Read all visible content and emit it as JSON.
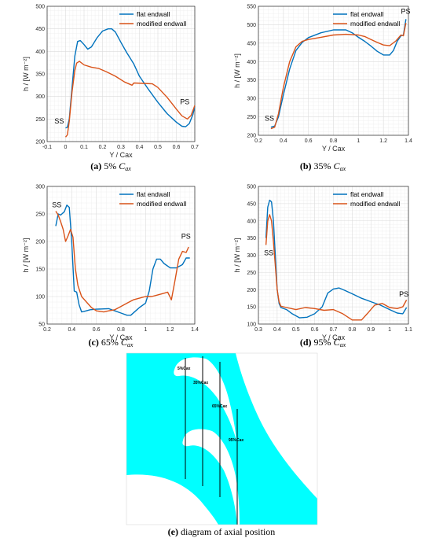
{
  "chart_data": [
    {
      "type": "line",
      "caption": {
        "label": "(a)",
        "text": "5% ",
        "var": "C",
        "sub": "ax"
      },
      "xlabel": "Y / Cax",
      "ylabel": "h / [W m⁻²]",
      "xlim": [
        -0.1,
        0.7
      ],
      "ylim": [
        200,
        500
      ],
      "xticks": [
        -0.1,
        0,
        0.1,
        0.2,
        0.3,
        0.4,
        0.5,
        0.6,
        0.7
      ],
      "yticks": [
        200,
        250,
        300,
        350,
        400,
        450,
        500
      ],
      "grid": true,
      "legend_position": "top-right",
      "annotations": [
        {
          "text": "SS",
          "x": -0.06,
          "y": 240
        },
        {
          "text": "PS",
          "x": 0.62,
          "y": 283
        }
      ],
      "series": [
        {
          "name": "flat endwall",
          "color": "#0072bd",
          "points": [
            [
              0.0,
              230
            ],
            [
              0.01,
              232
            ],
            [
              0.02,
              250
            ],
            [
              0.035,
              320
            ],
            [
              0.05,
              390
            ],
            [
              0.065,
              422
            ],
            [
              0.08,
              424
            ],
            [
              0.1,
              415
            ],
            [
              0.12,
              405
            ],
            [
              0.14,
              410
            ],
            [
              0.17,
              430
            ],
            [
              0.2,
              445
            ],
            [
              0.23,
              450
            ],
            [
              0.25,
              450
            ],
            [
              0.27,
              443
            ],
            [
              0.3,
              420
            ],
            [
              0.33,
              398
            ],
            [
              0.37,
              372
            ],
            [
              0.4,
              345
            ],
            [
              0.45,
              315
            ],
            [
              0.5,
              287
            ],
            [
              0.55,
              262
            ],
            [
              0.6,
              243
            ],
            [
              0.63,
              234
            ],
            [
              0.65,
              233
            ],
            [
              0.67,
              240
            ],
            [
              0.69,
              260
            ],
            [
              0.7,
              278
            ]
          ]
        },
        {
          "name": "modified endwall",
          "color": "#d95319",
          "points": [
            [
              0.0,
              210
            ],
            [
              0.01,
              215
            ],
            [
              0.02,
              245
            ],
            [
              0.035,
              310
            ],
            [
              0.05,
              358
            ],
            [
              0.06,
              374
            ],
            [
              0.075,
              378
            ],
            [
              0.1,
              370
            ],
            [
              0.14,
              365
            ],
            [
              0.18,
              362
            ],
            [
              0.22,
              355
            ],
            [
              0.27,
              345
            ],
            [
              0.32,
              332
            ],
            [
              0.36,
              325
            ],
            [
              0.37,
              330
            ],
            [
              0.42,
              329
            ],
            [
              0.47,
              328
            ],
            [
              0.5,
              320
            ],
            [
              0.55,
              298
            ],
            [
              0.6,
              272
            ],
            [
              0.63,
              257
            ],
            [
              0.66,
              250
            ],
            [
              0.68,
              258
            ],
            [
              0.7,
              280
            ]
          ]
        }
      ]
    },
    {
      "type": "line",
      "caption": {
        "label": "(b)",
        "text": "35% ",
        "var": "C",
        "sub": "ax"
      },
      "xlabel": "Y / Cax",
      "ylabel": "h / [W m⁻²]",
      "xlim": [
        0.2,
        1.4
      ],
      "ylim": [
        200,
        550
      ],
      "xticks": [
        0.2,
        0.4,
        0.6,
        0.8,
        1,
        1.2,
        1.4
      ],
      "yticks": [
        200,
        250,
        300,
        350,
        400,
        450,
        500,
        550
      ],
      "grid": true,
      "legend_position": "top-right",
      "annotations": [
        {
          "text": "SS",
          "x": 0.25,
          "y": 240
        },
        {
          "text": "PS",
          "x": 1.34,
          "y": 530
        }
      ],
      "series": [
        {
          "name": "flat endwall",
          "color": "#0072bd",
          "points": [
            [
              0.3,
              222
            ],
            [
              0.33,
              225
            ],
            [
              0.36,
              250
            ],
            [
              0.4,
              310
            ],
            [
              0.45,
              380
            ],
            [
              0.5,
              430
            ],
            [
              0.55,
              452
            ],
            [
              0.6,
              465
            ],
            [
              0.7,
              478
            ],
            [
              0.8,
              486
            ],
            [
              0.9,
              486
            ],
            [
              0.95,
              478
            ],
            [
              1.0,
              466
            ],
            [
              1.05,
              455
            ],
            [
              1.1,
              442
            ],
            [
              1.15,
              428
            ],
            [
              1.2,
              418
            ],
            [
              1.25,
              418
            ],
            [
              1.28,
              430
            ],
            [
              1.31,
              455
            ],
            [
              1.34,
              470
            ],
            [
              1.36,
              472
            ],
            [
              1.38,
              515
            ]
          ]
        },
        {
          "name": "modified endwall",
          "color": "#d95319",
          "points": [
            [
              0.3,
              218
            ],
            [
              0.33,
              222
            ],
            [
              0.36,
              258
            ],
            [
              0.4,
              330
            ],
            [
              0.45,
              400
            ],
            [
              0.5,
              440
            ],
            [
              0.55,
              455
            ],
            [
              0.6,
              460
            ],
            [
              0.7,
              466
            ],
            [
              0.8,
              472
            ],
            [
              0.9,
              474
            ],
            [
              1.0,
              472
            ],
            [
              1.05,
              468
            ],
            [
              1.1,
              460
            ],
            [
              1.15,
              452
            ],
            [
              1.2,
              445
            ],
            [
              1.25,
              443
            ],
            [
              1.3,
              456
            ],
            [
              1.34,
              472
            ],
            [
              1.36,
              470
            ],
            [
              1.38,
              505
            ]
          ]
        }
      ]
    },
    {
      "type": "line",
      "caption": {
        "label": "(c)",
        "text": "65% ",
        "var": "C",
        "sub": "ax"
      },
      "xlabel": "Y / Cax",
      "ylabel": "h / [W m⁻²]",
      "xlim": [
        0.2,
        1.4
      ],
      "ylim": [
        50,
        300
      ],
      "xticks": [
        0.2,
        0.4,
        0.6,
        0.8,
        1,
        1.2,
        1.4
      ],
      "yticks": [
        50,
        100,
        150,
        200,
        250,
        300
      ],
      "grid": true,
      "legend_position": "top-right",
      "annotations": [
        {
          "text": "SS",
          "x": 0.24,
          "y": 262
        },
        {
          "text": "PS",
          "x": 1.29,
          "y": 205
        }
      ],
      "series": [
        {
          "name": "flat endwall",
          "color": "#0072bd",
          "points": [
            [
              0.27,
              228
            ],
            [
              0.29,
              250
            ],
            [
              0.31,
              248
            ],
            [
              0.34,
              254
            ],
            [
              0.36,
              266
            ],
            [
              0.38,
              262
            ],
            [
              0.4,
              200
            ],
            [
              0.42,
              110
            ],
            [
              0.44,
              108
            ],
            [
              0.46,
              85
            ],
            [
              0.48,
              72
            ],
            [
              0.5,
              73
            ],
            [
              0.55,
              76
            ],
            [
              0.6,
              77
            ],
            [
              0.7,
              78
            ],
            [
              0.75,
              74
            ],
            [
              0.8,
              70
            ],
            [
              0.85,
              66
            ],
            [
              0.88,
              66
            ],
            [
              0.92,
              74
            ],
            [
              0.95,
              80
            ],
            [
              1.0,
              88
            ],
            [
              1.03,
              110
            ],
            [
              1.06,
              150
            ],
            [
              1.09,
              168
            ],
            [
              1.12,
              168
            ],
            [
              1.15,
              160
            ],
            [
              1.2,
              152
            ],
            [
              1.25,
              152
            ],
            [
              1.3,
              158
            ],
            [
              1.33,
              170
            ],
            [
              1.36,
              170
            ]
          ]
        },
        {
          "name": "modified endwall",
          "color": "#d95319",
          "points": [
            [
              0.27,
              255
            ],
            [
              0.29,
              248
            ],
            [
              0.31,
              236
            ],
            [
              0.33,
              222
            ],
            [
              0.35,
              200
            ],
            [
              0.37,
              210
            ],
            [
              0.39,
              222
            ],
            [
              0.41,
              208
            ],
            [
              0.43,
              150
            ],
            [
              0.45,
              120
            ],
            [
              0.48,
              100
            ],
            [
              0.52,
              90
            ],
            [
              0.56,
              80
            ],
            [
              0.6,
              74
            ],
            [
              0.66,
              72
            ],
            [
              0.7,
              74
            ],
            [
              0.75,
              76
            ],
            [
              0.8,
              82
            ],
            [
              0.85,
              88
            ],
            [
              0.9,
              94
            ],
            [
              0.95,
              97
            ],
            [
              1.0,
              100
            ],
            [
              1.05,
              100
            ],
            [
              1.1,
              103
            ],
            [
              1.15,
              106
            ],
            [
              1.18,
              108
            ],
            [
              1.21,
              94
            ],
            [
              1.24,
              130
            ],
            [
              1.27,
              168
            ],
            [
              1.3,
              182
            ],
            [
              1.33,
              180
            ],
            [
              1.35,
              190
            ]
          ]
        }
      ]
    },
    {
      "type": "line",
      "caption": {
        "label": "(d)",
        "text": "95% ",
        "var": "C",
        "sub": "ax"
      },
      "xlabel": "Y / Cax",
      "ylabel": "h / [W m⁻²]",
      "xlim": [
        0.3,
        1.1
      ],
      "ylim": [
        100,
        500
      ],
      "xticks": [
        0.3,
        0.4,
        0.5,
        0.6,
        0.7,
        0.8,
        0.9,
        1,
        1.1
      ],
      "yticks": [
        100,
        150,
        200,
        250,
        300,
        350,
        400,
        450,
        500
      ],
      "grid": true,
      "legend_position": "top-right",
      "annotations": [
        {
          "text": "SS",
          "x": 0.33,
          "y": 300
        },
        {
          "text": "PS",
          "x": 1.05,
          "y": 180
        }
      ],
      "series": [
        {
          "name": "flat endwall",
          "color": "#0072bd",
          "points": [
            [
              0.34,
              350
            ],
            [
              0.35,
              440
            ],
            [
              0.36,
              460
            ],
            [
              0.37,
              455
            ],
            [
              0.38,
              400
            ],
            [
              0.39,
              300
            ],
            [
              0.4,
              200
            ],
            [
              0.41,
              160
            ],
            [
              0.42,
              148
            ],
            [
              0.45,
              142
            ],
            [
              0.48,
              130
            ],
            [
              0.52,
              118
            ],
            [
              0.56,
              120
            ],
            [
              0.6,
              130
            ],
            [
              0.64,
              150
            ],
            [
              0.67,
              190
            ],
            [
              0.7,
              202
            ],
            [
              0.73,
              205
            ],
            [
              0.76,
              198
            ],
            [
              0.8,
              188
            ],
            [
              0.85,
              175
            ],
            [
              0.9,
              165
            ],
            [
              0.95,
              155
            ],
            [
              1.0,
              142
            ],
            [
              1.04,
              132
            ],
            [
              1.07,
              130
            ],
            [
              1.09,
              148
            ]
          ]
        },
        {
          "name": "modified endwall",
          "color": "#d95319",
          "points": [
            [
              0.34,
              330
            ],
            [
              0.35,
              400
            ],
            [
              0.36,
              418
            ],
            [
              0.37,
              400
            ],
            [
              0.38,
              340
            ],
            [
              0.39,
              270
            ],
            [
              0.4,
              200
            ],
            [
              0.41,
              165
            ],
            [
              0.42,
              152
            ],
            [
              0.45,
              148
            ],
            [
              0.5,
              142
            ],
            [
              0.55,
              148
            ],
            [
              0.6,
              145
            ],
            [
              0.65,
              140
            ],
            [
              0.7,
              142
            ],
            [
              0.75,
              130
            ],
            [
              0.8,
              112
            ],
            [
              0.85,
              112
            ],
            [
              0.88,
              130
            ],
            [
              0.92,
              155
            ],
            [
              0.96,
              160
            ],
            [
              1.0,
              148
            ],
            [
              1.04,
              145
            ],
            [
              1.07,
              150
            ],
            [
              1.09,
              170
            ]
          ]
        }
      ]
    }
  ],
  "diagram": {
    "caption": "(e) diagram of axial position",
    "caption_label": "(e)",
    "caption_text": " diagram of axial position",
    "background_color": "#00ffff",
    "positions": [
      "5%Cax",
      "35%Cax",
      "65%Cax",
      "95%Cax"
    ]
  },
  "colors": {
    "flat": "#0072bd",
    "modified": "#d95319",
    "grid": "#dcdcdc"
  }
}
